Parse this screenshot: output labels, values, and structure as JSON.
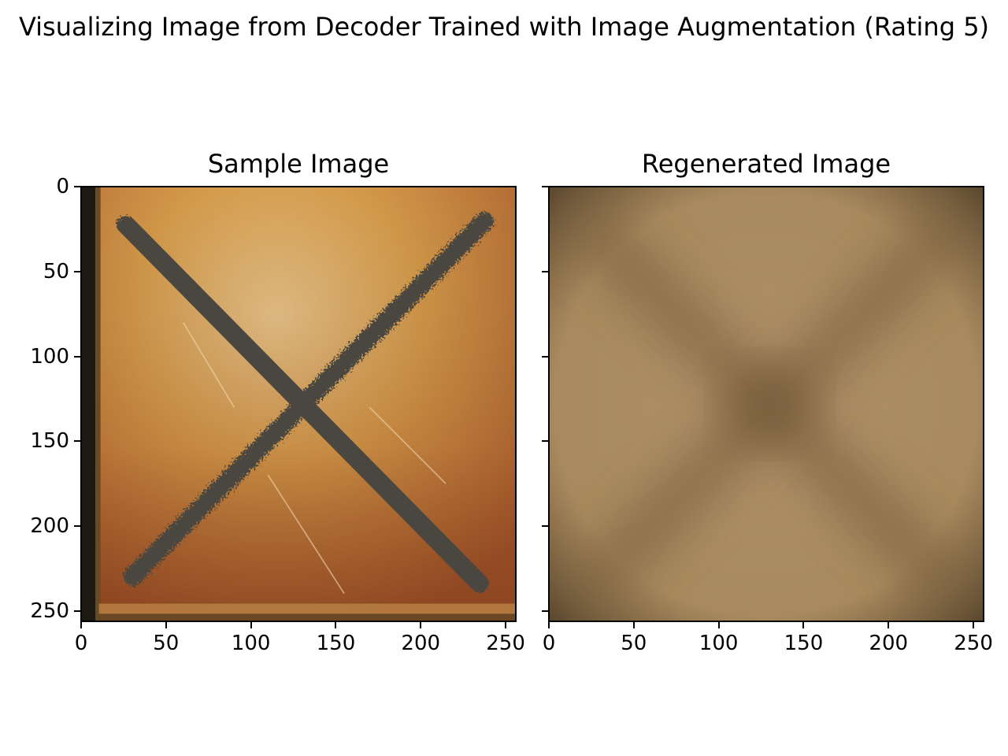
{
  "figure": {
    "suptitle": "Visualizing Image from Decoder Trained with Image Augmentation (Rating 5)"
  },
  "chart_data": [
    {
      "type": "image",
      "title": "Sample Image",
      "xlabel": "",
      "ylabel": "",
      "xlim": [
        0,
        256
      ],
      "ylim": [
        256,
        0
      ],
      "xticks": [
        0,
        50,
        100,
        150,
        200,
        250
      ],
      "yticks": [
        0,
        50,
        100,
        150,
        200,
        250
      ],
      "show_ytick_labels": true,
      "content": "rusty orange metal square plate with a dark scorched X mark",
      "colors": {
        "base": "#d49a4a",
        "mid": "#b8743a",
        "rust": "#a65a2c",
        "edge_dark": "#1c1a12",
        "x_mark": "#4a4640"
      }
    },
    {
      "type": "image",
      "title": "Regenerated Image",
      "xlabel": "",
      "ylabel": "",
      "xlim": [
        0,
        256
      ],
      "ylim": [
        256,
        0
      ],
      "xticks": [
        0,
        50,
        100,
        150,
        200,
        250
      ],
      "yticks": [
        0,
        50,
        100,
        150,
        200,
        250
      ],
      "show_ytick_labels": false,
      "content": "blurry brown square with a faint darker X pattern",
      "colors": {
        "base": "#a88a5e",
        "dark": "#6e5435",
        "edge": "#5e4a30"
      }
    }
  ]
}
